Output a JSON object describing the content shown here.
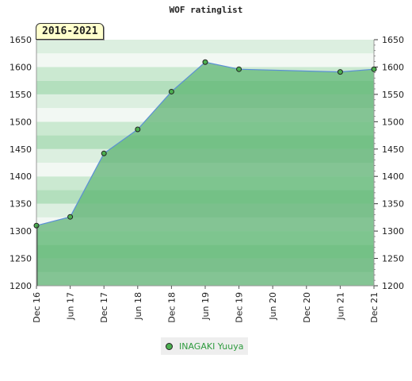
{
  "chart_data": {
    "type": "area",
    "title": "WOF ratinglist",
    "period_badge": "2016-2021",
    "ylim": [
      1200,
      1650
    ],
    "y_ticks": [
      1200,
      1250,
      1300,
      1350,
      1400,
      1450,
      1500,
      1550,
      1600,
      1650
    ],
    "x_ticks": [
      "Dec 16",
      "Jun 17",
      "Dec 17",
      "Jun 18",
      "Dec 18",
      "Jun 19",
      "Dec 19",
      "Jun 20",
      "Dec 20",
      "Jun 21",
      "Dec 21"
    ],
    "xlabel": "",
    "ylabel": "",
    "legend_position": "bottom",
    "grid": true,
    "series": [
      {
        "name": "INAGAKI Yuuya",
        "color": "#4caf50",
        "x": [
          "Dec 16",
          "Jun 17",
          "Dec 17",
          "Jun 18",
          "Dec 18",
          "Jun 19",
          "Dec 19",
          "Jun 21",
          "Dec 21"
        ],
        "values": [
          1310,
          1326,
          1442,
          1486,
          1555,
          1609,
          1596,
          1591,
          1596
        ]
      }
    ]
  }
}
